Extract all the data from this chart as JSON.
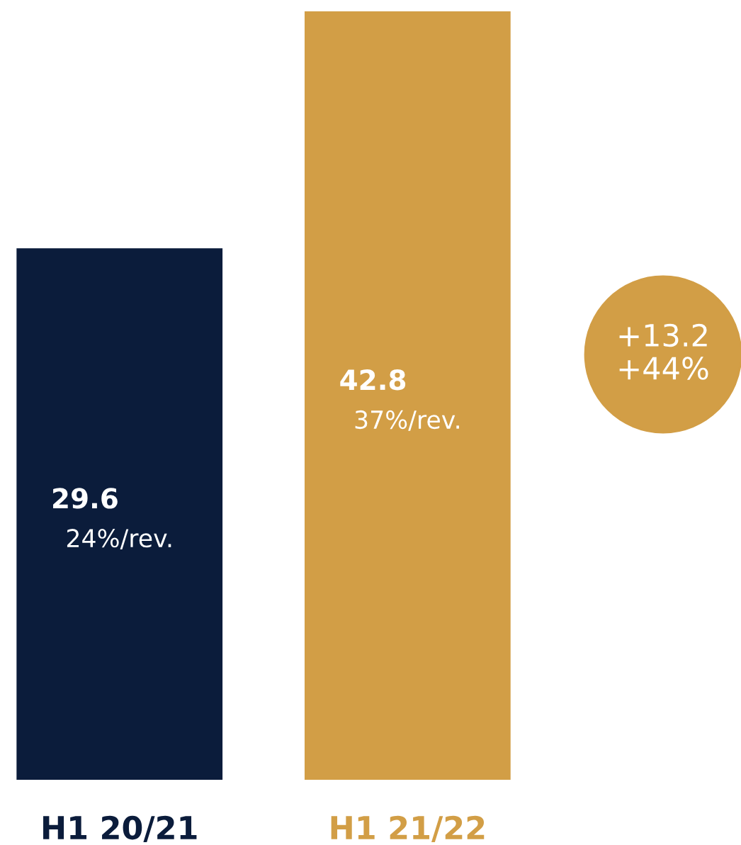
{
  "chart_data": {
    "type": "bar",
    "categories": [
      "H1 20/21",
      "H1 21/22"
    ],
    "values": [
      29.6,
      42.8
    ],
    "colors": [
      "#0b1c3b",
      "#d29e46"
    ],
    "data_labels": true,
    "grid": false,
    "annotations": [
      "24%/rev.",
      "37%/rev.",
      "+13.2\n+44%"
    ]
  }
}
